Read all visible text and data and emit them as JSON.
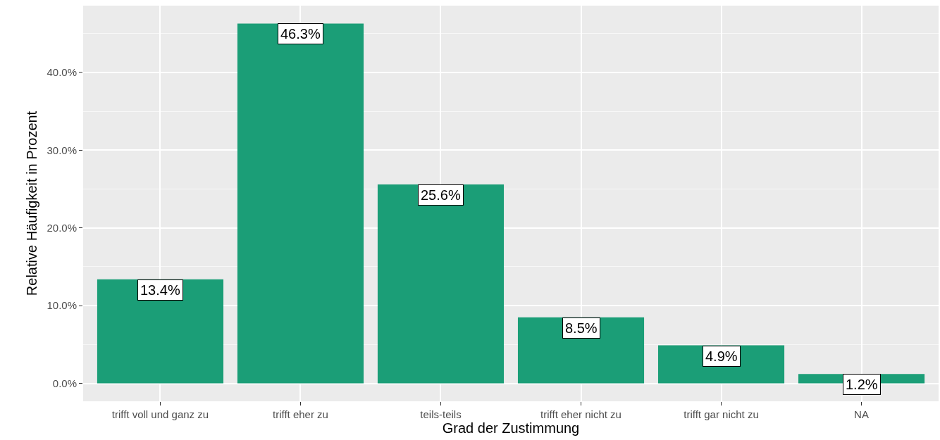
{
  "chart_data": {
    "type": "bar",
    "xlabel": "Grad der Zustimmung",
    "ylabel": "Relative Häufigkeit in Prozent",
    "categories": [
      "trifft voll und ganz zu",
      "trifft eher zu",
      "teils-teils",
      "trifft eher nicht zu",
      "trifft gar nicht zu",
      "NA"
    ],
    "values": [
      13.4,
      46.3,
      25.6,
      8.5,
      4.9,
      1.2
    ],
    "value_labels": [
      "13.4%",
      "46.3%",
      "25.6%",
      "8.5%",
      "4.9%",
      "1.2%"
    ],
    "color": "#1b9e77",
    "ylim": [
      -2.3,
      48.6
    ],
    "yticks": [
      {
        "value": 0,
        "label": "0.0%"
      },
      {
        "value": 10,
        "label": "10.0%"
      },
      {
        "value": 20,
        "label": "20.0%"
      },
      {
        "value": 30,
        "label": "30.0%"
      },
      {
        "value": 40,
        "label": "40.0%"
      }
    ],
    "grid": true
  }
}
